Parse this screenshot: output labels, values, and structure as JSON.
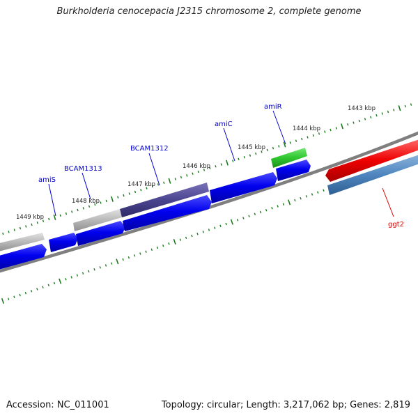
{
  "title": "Burkholderia cenocepacia J2315 chromosome 2, complete genome",
  "footer": {
    "accession": "Accession: NC_011001",
    "summary": "Topology: circular; Length: 3,217,062 bp; Genes: 2,819"
  },
  "colors": {
    "backbone": "#7a7a7a",
    "tick": "#1e7a1e",
    "gene_label": "#0000cc",
    "highlight_label": "#dd0000"
  },
  "ruler_labels": [
    "1449 kbp",
    "1448 kbp",
    "1447 kbp",
    "1446 kbp",
    "1445 kbp",
    "1444 kbp",
    "1443 kbp"
  ],
  "gene_labels": [
    "amiS",
    "BCAM1313",
    "BCAM1312",
    "amiC",
    "amiR",
    "ggt2"
  ],
  "features": [
    {
      "label": "amiS",
      "strand": "forward",
      "kind": "CDS",
      "color": "blue"
    },
    {
      "label": "BCAM1313",
      "strand": "forward",
      "kind": "CDS",
      "color": "blue"
    },
    {
      "label": "BCAM1312",
      "strand": "forward",
      "kind": "CDS",
      "color": "blue"
    },
    {
      "label": "amiC",
      "strand": "forward",
      "kind": "CDS",
      "color": "blue"
    },
    {
      "label": "amiR",
      "strand": "forward",
      "kind": "CDS",
      "color": "blue"
    },
    {
      "label": "ggt2",
      "strand": "reverse",
      "kind": "CDS",
      "color": "red"
    }
  ]
}
